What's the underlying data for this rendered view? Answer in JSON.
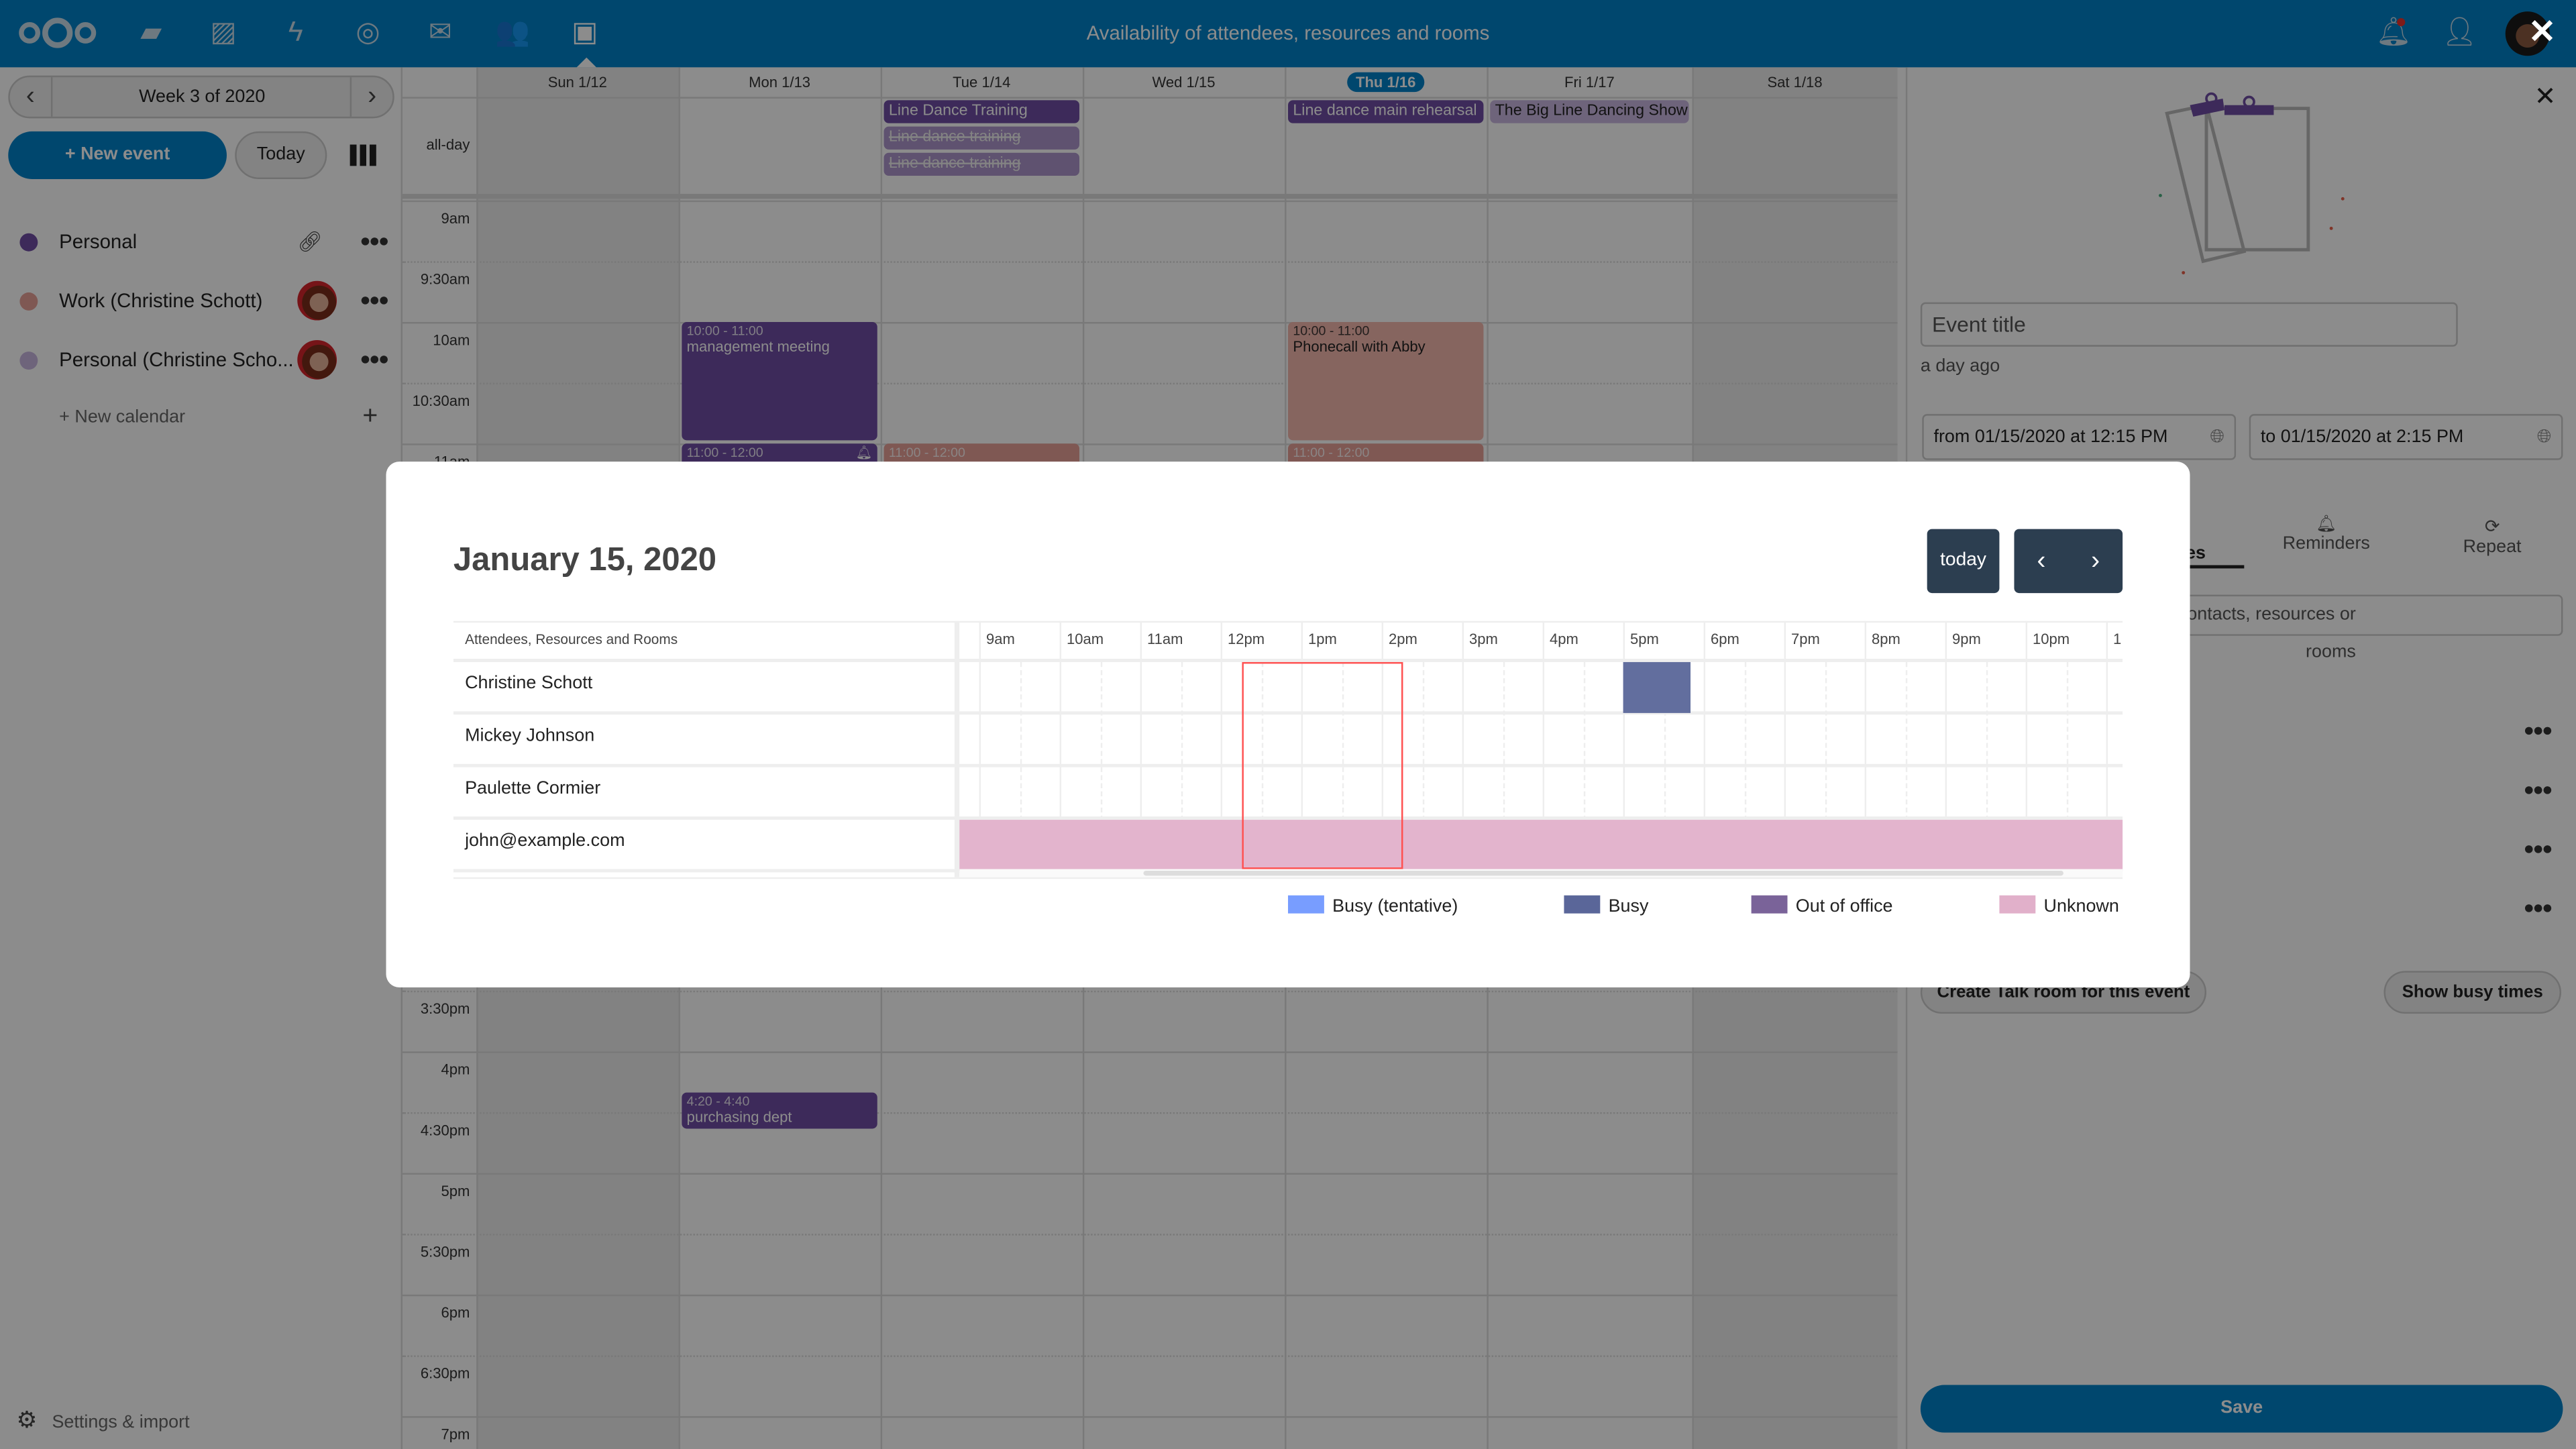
{
  "header": {
    "title": "Availability of attendees, resources and rooms",
    "apps": [
      "nextcloud-logo-icon",
      "files-icon",
      "photos-icon",
      "activity-icon",
      "talk-icon",
      "mail-icon",
      "contacts-icon",
      "calendar-icon"
    ],
    "accent": "#0082c9"
  },
  "sidebar": {
    "week_label": "Week 3 of 2020",
    "new_event": "+ New event",
    "today": "Today",
    "calendars": [
      {
        "name": "Personal",
        "color": "#6f4ea4"
      },
      {
        "name": "Work (Christine Schott)",
        "color": "#e8a098"
      },
      {
        "name": "Personal (Christine Scho...",
        "color": "#c8b6e0"
      }
    ],
    "new_calendar": "+ New calendar",
    "settings": "Settings & import"
  },
  "week": {
    "days": [
      "Sun 1/12",
      "Mon 1/13",
      "Tue 1/14",
      "Wed 1/15",
      "Thu 1/16",
      "Fri 1/17",
      "Sat 1/18"
    ],
    "today_index": 4,
    "allday_label": "all-day",
    "time_labels_top": [
      "9am",
      "9:30am",
      "10am",
      "10:30am",
      "11am"
    ],
    "time_labels_bottom": [
      "3:30pm",
      "4pm",
      "4:30pm",
      "5pm",
      "5:30pm",
      "6pm",
      "6:30pm",
      "7pm"
    ],
    "allday_events": [
      {
        "day": 2,
        "row": 0,
        "title": "Line Dance Training",
        "style": "dark"
      },
      {
        "day": 2,
        "row": 1,
        "title": "Line dance training",
        "style": "struck"
      },
      {
        "day": 2,
        "row": 2,
        "title": "Line dance training",
        "style": "struck"
      },
      {
        "day": 4,
        "row": 0,
        "title": "Line dance main rehearsal",
        "style": "dark"
      },
      {
        "day": 5,
        "row": 0,
        "title": "The Big Line Dancing Show",
        "style": "light"
      }
    ],
    "events": [
      {
        "day": 1,
        "start": 10,
        "end": 11,
        "time": "10:00 - 11:00",
        "title": "management meeting",
        "color": "#6f4ea4"
      },
      {
        "day": 1,
        "start": 11,
        "end": 12,
        "time": "11:00 - 12:00",
        "title": "",
        "color": "#6f4ea4",
        "bell": true
      },
      {
        "day": 2,
        "start": 11,
        "end": 12,
        "time": "11:00 - 12:00",
        "title": "",
        "color": "#e8a098"
      },
      {
        "day": 4,
        "start": 10,
        "end": 11,
        "time": "10:00 - 11:00",
        "title": "Phonecall with Abby",
        "color": "#f5b8ae"
      },
      {
        "day": 4,
        "start": 11,
        "end": 12,
        "time": "11:00 - 12:00",
        "title": "",
        "color": "#e8a098"
      },
      {
        "day": 1,
        "start": 16.3333,
        "end": 16.6667,
        "time": "4:20 - 4:40",
        "title": "purchasing dept",
        "color": "#6f4ea4"
      }
    ]
  },
  "panel": {
    "title_placeholder": "Event title",
    "modified": "a day ago",
    "from": "from 01/15/2020 at 12:15 PM",
    "to": "to 01/15/2020 at 2:15 PM",
    "tabs": [
      "Attendees",
      "Reminders",
      "Repeat"
    ],
    "active_tab": "Attendees",
    "attendee_search_placeholder": "Search for emails, users, contacts, resources or rooms",
    "create_talk": "Create Talk room for this event",
    "show_busy": "Show busy times",
    "save": "Save"
  },
  "modal": {
    "date": "January 15, 2020",
    "today": "today",
    "resource_header": "Attendees, Resources and Rooms",
    "hours": [
      "9am",
      "10am",
      "11am",
      "12pm",
      "1pm",
      "2pm",
      "3pm",
      "4pm",
      "5pm",
      "6pm",
      "7pm",
      "8pm",
      "9pm",
      "10pm",
      "1"
    ],
    "attendees": [
      "Christine Schott",
      "Mickey Johnson",
      "Paulette Cormier",
      "john@example.com"
    ],
    "selection": {
      "start": "12:15 PM",
      "end": "2:15 PM",
      "color": "#ff5050"
    },
    "busy_blocks": [
      {
        "attendee": 0,
        "start": 17.0,
        "end": 17.83,
        "status": "Busy"
      },
      {
        "attendee": 3,
        "start": 8.75,
        "end": 23.2,
        "status": "Unknown"
      }
    ],
    "legend": [
      {
        "label": "Busy (tentative)",
        "color": "#789dff"
      },
      {
        "label": "Busy",
        "color": "#5a6699"
      },
      {
        "label": "Out of office",
        "color": "#7a6399"
      },
      {
        "label": "Unknown",
        "color": "#e1b0ca"
      }
    ]
  }
}
